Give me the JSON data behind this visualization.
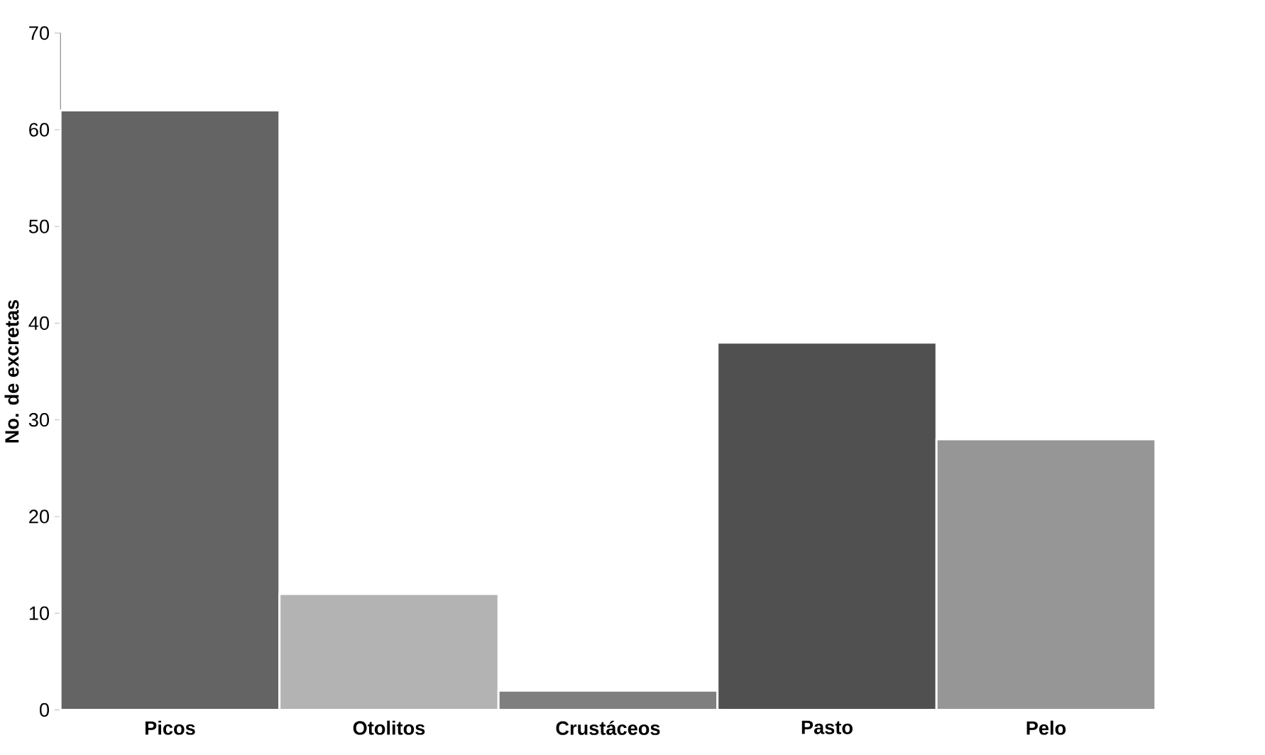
{
  "chart_data": {
    "type": "bar",
    "ylabel": "No. de excretas",
    "categories": [
      "Picos",
      "Otolitos",
      "Crustáceos",
      "Pasto",
      "Pelo"
    ],
    "values": [
      62,
      12,
      2,
      38,
      28
    ],
    "colors": [
      "#646464",
      "#b3b3b3",
      "#7f7f7f",
      "#505050",
      "#969696"
    ],
    "ylim": [
      0,
      70
    ],
    "yticks": [
      0,
      10,
      20,
      30,
      40,
      50,
      60,
      70
    ],
    "grid": false
  }
}
